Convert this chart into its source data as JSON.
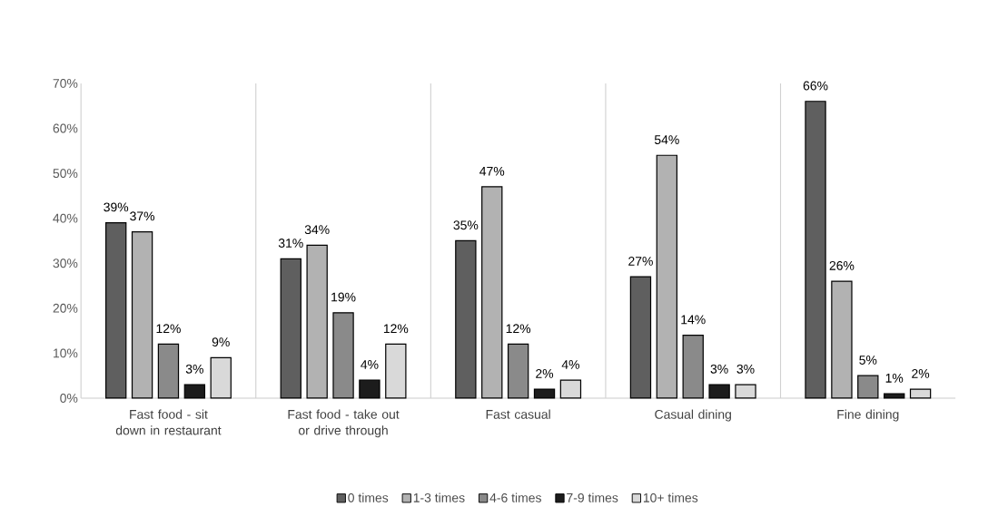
{
  "chart_data": {
    "type": "bar",
    "categories": [
      "Fast food - sit down in restaurant",
      "Fast food - take out or drive through",
      "Fast casual",
      "Casual dining",
      "Fine dining"
    ],
    "series": [
      {
        "name": "0 times",
        "color": "#5f5f5f",
        "values": [
          39,
          31,
          35,
          27,
          66
        ],
        "value_labels": [
          "39%",
          "31%",
          "35%",
          "27%",
          "66%"
        ]
      },
      {
        "name": "1-3 times",
        "color": "#b2b2b2",
        "values": [
          37,
          34,
          47,
          54,
          26
        ],
        "value_labels": [
          "37%",
          "34%",
          "47%",
          "54%",
          "26%"
        ]
      },
      {
        "name": "4-6 times",
        "color": "#8a8a8a",
        "values": [
          12,
          19,
          12,
          14,
          5
        ],
        "value_labels": [
          "12%",
          "19%",
          "12%",
          "14%",
          "5%"
        ]
      },
      {
        "name": "7-9 times",
        "color": "#1c1c1c",
        "values": [
          3,
          4,
          2,
          3,
          1
        ],
        "value_labels": [
          "3%",
          "4%",
          "2%",
          "3%",
          "1%"
        ]
      },
      {
        "name": "10+ times",
        "color": "#d9d9d9",
        "values": [
          9,
          12,
          4,
          3,
          2
        ],
        "value_labels": [
          "9%",
          "12%",
          "4%",
          "3%",
          "2%"
        ]
      }
    ],
    "ylim": [
      0,
      70
    ],
    "yticks": [
      {
        "value": 0,
        "label": "0%"
      },
      {
        "value": 10,
        "label": "10%"
      },
      {
        "value": 20,
        "label": "20%"
      },
      {
        "value": 30,
        "label": "30%"
      },
      {
        "value": 40,
        "label": "40%"
      },
      {
        "value": 50,
        "label": "50%"
      },
      {
        "value": 60,
        "label": "60%"
      },
      {
        "value": 70,
        "label": "70%"
      }
    ],
    "grid": "x",
    "legend": "bottom"
  }
}
